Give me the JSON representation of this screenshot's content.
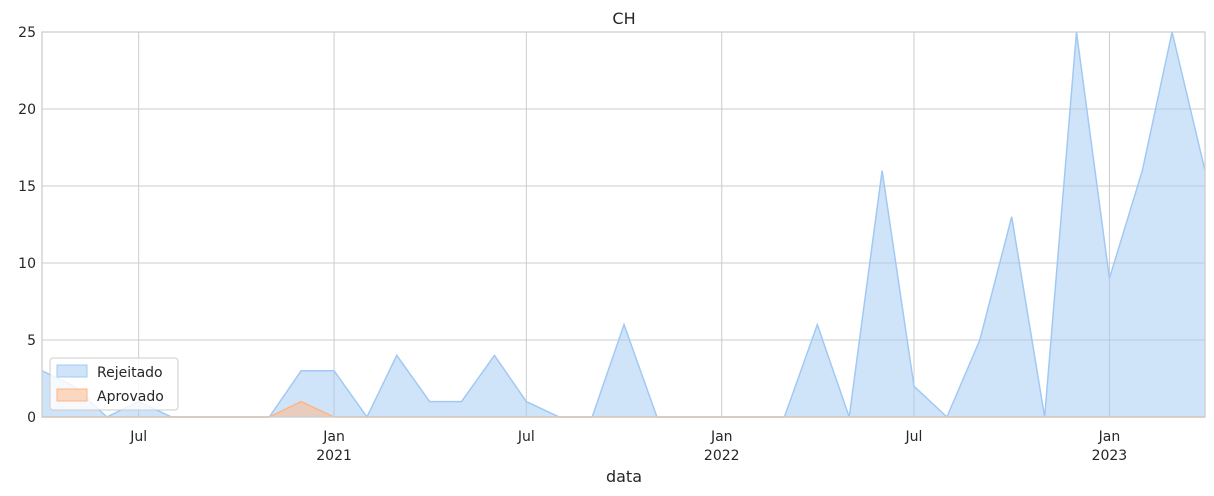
{
  "chart_data": {
    "type": "area",
    "title": "CH",
    "xlabel": "data",
    "ylabel": "",
    "ylim": [
      0,
      25
    ],
    "xlim": [
      "2020-04-01",
      "2023-04-01"
    ],
    "yticks": [
      0,
      5,
      10,
      15,
      20,
      25
    ],
    "xticks": [
      {
        "date": "2020-07-01",
        "label": "Jul",
        "sub": ""
      },
      {
        "date": "2021-01-01",
        "label": "Jan",
        "sub": "2021"
      },
      {
        "date": "2021-07-01",
        "label": "Jul",
        "sub": ""
      },
      {
        "date": "2022-01-01",
        "label": "Jan",
        "sub": "2022"
      },
      {
        "date": "2022-07-01",
        "label": "Jul",
        "sub": ""
      },
      {
        "date": "2023-01-01",
        "label": "Jan",
        "sub": "2023"
      }
    ],
    "x": [
      "2020-04-01",
      "2020-05-01",
      "2020-06-01",
      "2020-07-01",
      "2020-08-01",
      "2020-09-01",
      "2020-10-01",
      "2020-11-01",
      "2020-12-01",
      "2021-01-01",
      "2021-02-01",
      "2021-03-01",
      "2021-04-01",
      "2021-05-01",
      "2021-06-01",
      "2021-07-01",
      "2021-08-01",
      "2021-09-01",
      "2021-10-01",
      "2021-11-01",
      "2021-12-01",
      "2022-01-01",
      "2022-02-01",
      "2022-03-01",
      "2022-04-01",
      "2022-05-01",
      "2022-06-01",
      "2022-07-01",
      "2022-08-01",
      "2022-09-01",
      "2022-10-01",
      "2022-11-01",
      "2022-12-01",
      "2023-01-01",
      "2023-02-01",
      "2023-03-01",
      "2023-04-01"
    ],
    "series": [
      {
        "name": "Rejeitado",
        "color": "#a1c9f4",
        "values": [
          3,
          2,
          0,
          1,
          0,
          0,
          0,
          0,
          3,
          3,
          0,
          4,
          1,
          1,
          4,
          1,
          0,
          0,
          6,
          0,
          0,
          0,
          0,
          0,
          6,
          0,
          16,
          2,
          0,
          5,
          13,
          0,
          25,
          9,
          16,
          25,
          16
        ]
      },
      {
        "name": "Aprovado",
        "color": "#ffb482",
        "values": [
          0,
          0,
          0,
          0,
          0,
          0,
          0,
          0,
          1,
          0,
          0,
          0,
          0,
          0,
          0,
          0,
          0,
          0,
          0,
          0,
          0,
          0,
          0,
          0,
          0,
          0,
          0,
          0,
          0,
          0,
          0,
          0,
          0,
          0,
          0,
          0,
          0
        ]
      }
    ],
    "legend_position": "lower-left",
    "grid": true
  }
}
